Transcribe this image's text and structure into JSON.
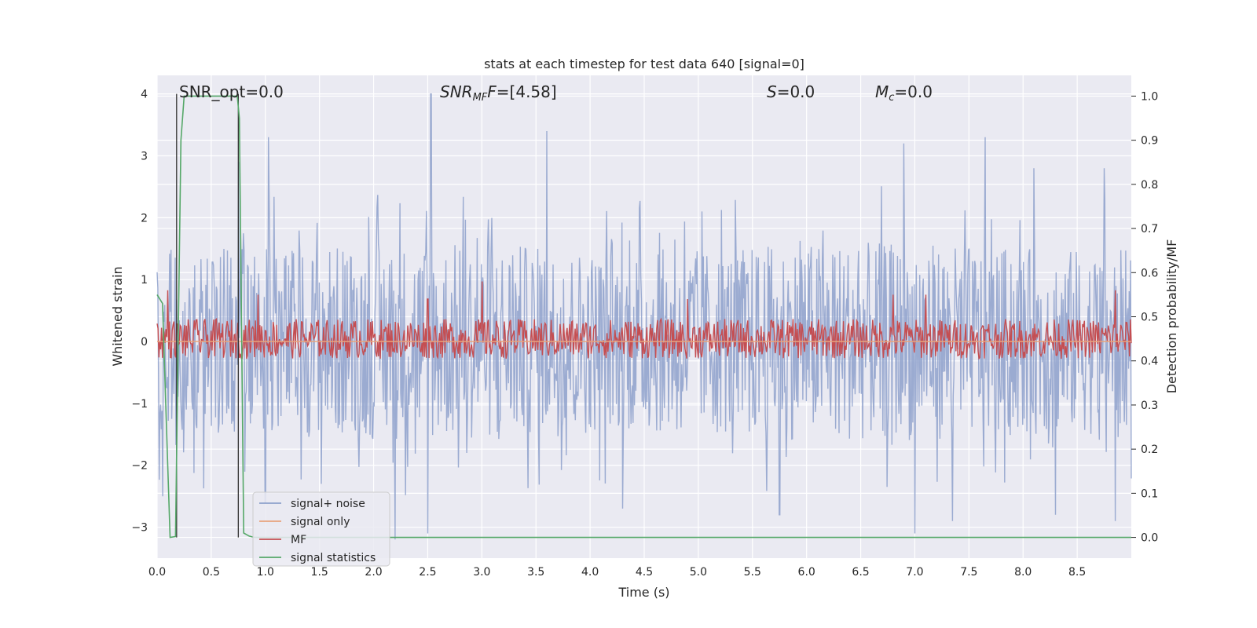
{
  "chart_data": {
    "type": "line",
    "title": "stats at each timestep for test data 640 [signal=0]",
    "xlabel": "Time (s)",
    "ylabel": "Whitened strain",
    "y2label": "Detection probability/MF",
    "xlim": [
      0.0,
      9.0
    ],
    "ylim": [
      -3.5,
      4.3
    ],
    "y2lim": [
      -0.047,
      1.047
    ],
    "xticks": [
      "0.0",
      "0.5",
      "1.0",
      "1.5",
      "2.0",
      "2.5",
      "3.0",
      "3.5",
      "4.0",
      "4.5",
      "5.0",
      "5.5",
      "6.0",
      "6.5",
      "7.0",
      "7.5",
      "8.0",
      "8.5"
    ],
    "yticks": [
      "−3",
      "−2",
      "−1",
      "0",
      "1",
      "2",
      "3",
      "4"
    ],
    "y2ticks": [
      "0.0",
      "0.1",
      "0.2",
      "0.3",
      "0.4",
      "0.5",
      "0.6",
      "0.7",
      "0.8",
      "0.9",
      "1.0"
    ],
    "grid": true,
    "legend_position": "lower-left",
    "annotations": {
      "snr_opt": "SNR_opt=0.0",
      "snr_mf_base": "SNR",
      "snr_mf_sub": "MF",
      "snr_mf_rest": "=[4.58]",
      "s_label": "S",
      "s_rest": "=0.0",
      "mc_base": "M",
      "mc_sub": "c",
      "mc_rest": "=0.0"
    },
    "series": [
      {
        "name": "signal+ noise",
        "color": "#8da0cb",
        "description": "whitened strain noise, approximately symmetric about 0",
        "envelope_upper": [
          [
            0,
            1.5
          ],
          [
            1,
            1.5
          ],
          [
            2,
            1.6
          ],
          [
            3,
            1.6
          ],
          [
            4,
            1.5
          ],
          [
            5,
            1.5
          ],
          [
            6,
            1.6
          ],
          [
            7,
            1.6
          ],
          [
            8,
            1.5
          ],
          [
            9,
            1.5
          ]
        ],
        "spikes_up": [
          [
            0.05,
            2.7
          ],
          [
            0.75,
            2.9
          ],
          [
            1.03,
            3.3
          ],
          [
            2.53,
            4.0
          ],
          [
            3.6,
            3.4
          ],
          [
            6.9,
            3.2
          ],
          [
            7.65,
            3.3
          ],
          [
            8.1,
            2.8
          ],
          [
            8.75,
            2.8
          ]
        ],
        "spikes_down": [
          [
            0.05,
            -2.5
          ],
          [
            1.0,
            -2.6
          ],
          [
            2.2,
            -3.2
          ],
          [
            2.5,
            -3.1
          ],
          [
            4.3,
            -2.7
          ],
          [
            5.75,
            -2.8
          ],
          [
            7.0,
            -3.1
          ],
          [
            7.35,
            -2.9
          ],
          [
            8.3,
            -2.8
          ],
          [
            8.85,
            -2.9
          ]
        ]
      },
      {
        "name": "signal only",
        "color": "#e8a37c",
        "x": [
          0.0,
          9.0
        ],
        "y": [
          0.0,
          0.0
        ]
      },
      {
        "name": "MF",
        "color": "#c44e52",
        "axis": "right",
        "baseline": 0.45,
        "peaks": [
          [
            0.1,
            0.56
          ],
          [
            0.93,
            0.55
          ],
          [
            2.5,
            0.54
          ],
          [
            3.0,
            0.58
          ],
          [
            4.9,
            0.54
          ],
          [
            6.8,
            0.55
          ],
          [
            7.1,
            0.55
          ],
          [
            8.85,
            0.56
          ]
        ]
      },
      {
        "name": "signal statistics",
        "color": "#55a868",
        "axis": "right",
        "x": [
          0.0,
          0.05,
          0.08,
          0.12,
          0.17,
          0.22,
          0.25,
          0.3,
          0.5,
          0.74,
          0.76,
          0.8,
          0.85,
          0.9,
          9.0
        ],
        "y": [
          0.55,
          0.53,
          0.3,
          0.0,
          0.002,
          0.9,
          1.0,
          1.0,
          1.0,
          1.0,
          0.95,
          0.01,
          0.003,
          0.0,
          0.0
        ]
      }
    ],
    "vertical_markers": [
      0.18,
      0.75
    ]
  }
}
